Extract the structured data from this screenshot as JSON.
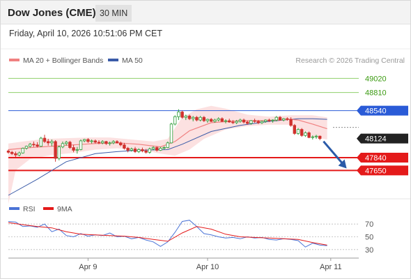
{
  "header": {
    "title": "Dow Jones (CME)",
    "timeframe": "30 MIN"
  },
  "subtitle": "Friday, April 10, 2026 10:51:06 PM CET",
  "colors": {
    "candle_up": "#2e9d3a",
    "candle_down": "#d0312d",
    "ma20": "#f08080",
    "bollinger_band": "#fcdcdc",
    "ma50": "#3a5ba8",
    "resistance_line": "#8fcf6b",
    "resistance_text": "#3a9a10",
    "pivot_line": "#2a5bd7",
    "pivot_label_bg": "#2a5bd7",
    "support_line": "#e41a1a",
    "support_label_bg": "#e41a1a",
    "last_price_bg": "#222222",
    "arrow": "#2a5aa8",
    "rsi_line": "#4a73d6",
    "rsi_9ma": "#e41a1a"
  },
  "chart_data": {
    "type": "candlestick",
    "legend": [
      {
        "name": "MA 20 + Bollinger Bands",
        "color": "#f08080"
      },
      {
        "name": "MA 50",
        "color": "#3a5ba8"
      }
    ],
    "watermark": "Research © 2026 Trading Central",
    "ylim": [
      47280,
      49200
    ],
    "levels": [
      {
        "value": 49020,
        "label": "49020",
        "kind": "resistance"
      },
      {
        "value": 48810,
        "label": "48810",
        "kind": "resistance"
      },
      {
        "value": 48540,
        "label": "48540",
        "kind": "pivot"
      },
      {
        "value": 47840,
        "label": "47840",
        "kind": "support"
      },
      {
        "value": 47650,
        "label": "47650",
        "kind": "support"
      }
    ],
    "last_price": 48124,
    "last_price_label": "48124",
    "x_ticks": [
      {
        "label": "Apr 9",
        "index": 22
      },
      {
        "label": "Apr 10",
        "index": 55
      },
      {
        "label": "Apr 11",
        "index": 89
      }
    ],
    "candles": [
      [
        47940,
        47960,
        47900,
        47920
      ],
      [
        47920,
        47940,
        47880,
        47900
      ],
      [
        47900,
        47930,
        47850,
        47880
      ],
      [
        47880,
        47930,
        47860,
        47910
      ],
      [
        47910,
        47990,
        47900,
        47980
      ],
      [
        47980,
        48020,
        47960,
        48010
      ],
      [
        48010,
        48060,
        47990,
        48040
      ],
      [
        48040,
        48080,
        48000,
        48030
      ],
      [
        48030,
        48070,
        47990,
        48010
      ],
      [
        48010,
        48150,
        48000,
        48130
      ],
      [
        48130,
        48180,
        48060,
        48080
      ],
      [
        48080,
        48120,
        48020,
        48060
      ],
      [
        48060,
        48110,
        48010,
        48080
      ],
      [
        48080,
        48100,
        47780,
        47830
      ],
      [
        47830,
        48020,
        47800,
        48000
      ],
      [
        48000,
        48080,
        47980,
        48050
      ],
      [
        48050,
        48090,
        48020,
        48070
      ],
      [
        48070,
        48090,
        47970,
        47990
      ],
      [
        47990,
        48030,
        47920,
        47950
      ],
      [
        47950,
        48000,
        47900,
        47960
      ],
      [
        47960,
        48110,
        47950,
        48090
      ],
      [
        48090,
        48120,
        48070,
        48110
      ],
      [
        48110,
        48130,
        48060,
        48080
      ],
      [
        48080,
        48110,
        48050,
        48090
      ],
      [
        48090,
        48110,
        48050,
        48070
      ],
      [
        48070,
        48100,
        48040,
        48060
      ],
      [
        48060,
        48100,
        48040,
        48080
      ],
      [
        48080,
        48090,
        48030,
        48050
      ],
      [
        48050,
        48080,
        48020,
        48060
      ],
      [
        48060,
        48100,
        48040,
        48080
      ],
      [
        48080,
        48100,
        48050,
        48060
      ],
      [
        48060,
        48080,
        48010,
        48030
      ],
      [
        48030,
        48060,
        47960,
        47980
      ],
      [
        47980,
        48000,
        47920,
        47950
      ],
      [
        47950,
        47990,
        47930,
        47970
      ],
      [
        47970,
        48000,
        47910,
        47930
      ],
      [
        47930,
        47980,
        47910,
        47960
      ],
      [
        47960,
        47990,
        47920,
        47940
      ],
      [
        47940,
        47970,
        47900,
        47920
      ],
      [
        47920,
        47990,
        47900,
        47970
      ],
      [
        47970,
        48010,
        47950,
        47990
      ],
      [
        47990,
        48010,
        47930,
        47950
      ],
      [
        47950,
        48000,
        47940,
        47980
      ],
      [
        47980,
        48010,
        47960,
        47990
      ],
      [
        47990,
        48080,
        47980,
        48060
      ],
      [
        48060,
        48360,
        48050,
        48340
      ],
      [
        48340,
        48470,
        48320,
        48450
      ],
      [
        48450,
        48560,
        48400,
        48520
      ],
      [
        48520,
        48540,
        48420,
        48440
      ],
      [
        48440,
        48480,
        48400,
        48460
      ],
      [
        48460,
        48480,
        48400,
        48420
      ],
      [
        48420,
        48460,
        48380,
        48440
      ],
      [
        48440,
        48460,
        48380,
        48400
      ],
      [
        48400,
        48460,
        48380,
        48440
      ],
      [
        48440,
        48460,
        48370,
        48390
      ],
      [
        48390,
        48420,
        48360,
        48410
      ],
      [
        48410,
        48430,
        48370,
        48380
      ],
      [
        48380,
        48420,
        48360,
        48400
      ],
      [
        48400,
        48440,
        48380,
        48420
      ],
      [
        48420,
        48440,
        48370,
        48380
      ],
      [
        48380,
        48410,
        48350,
        48390
      ],
      [
        48390,
        48420,
        48360,
        48370
      ],
      [
        48370,
        48400,
        48340,
        48360
      ],
      [
        48360,
        48400,
        48340,
        48380
      ],
      [
        48380,
        48420,
        48360,
        48400
      ],
      [
        48400,
        48420,
        48350,
        48370
      ],
      [
        48370,
        48390,
        48330,
        48350
      ],
      [
        48350,
        48400,
        48330,
        48390
      ],
      [
        48390,
        48420,
        48360,
        48380
      ],
      [
        48380,
        48400,
        48340,
        48360
      ],
      [
        48360,
        48390,
        48340,
        48380
      ],
      [
        48380,
        48410,
        48360,
        48400
      ],
      [
        48400,
        48420,
        48370,
        48390
      ],
      [
        48390,
        48410,
        48360,
        48400
      ],
      [
        48400,
        48460,
        48380,
        48440
      ],
      [
        48440,
        48460,
        48390,
        48400
      ],
      [
        48400,
        48430,
        48380,
        48420
      ],
      [
        48420,
        48440,
        48390,
        48410
      ],
      [
        48410,
        48440,
        48300,
        48320
      ],
      [
        48320,
        48340,
        48180,
        48200
      ],
      [
        48200,
        48280,
        48180,
        48260
      ],
      [
        48260,
        48280,
        48150,
        48170
      ],
      [
        48170,
        48230,
        48150,
        48210
      ],
      [
        48210,
        48230,
        48130,
        48140
      ],
      [
        48140,
        48170,
        48110,
        48150
      ],
      [
        48150,
        48180,
        48120,
        48160
      ],
      [
        48160,
        48170,
        48100,
        48124
      ]
    ],
    "ma20": [
      [
        0,
        47960
      ],
      [
        6,
        47990
      ],
      [
        12,
        48010
      ],
      [
        18,
        48030
      ],
      [
        24,
        48050
      ],
      [
        30,
        48060
      ],
      [
        36,
        48040
      ],
      [
        42,
        48000
      ],
      [
        46,
        48080
      ],
      [
        50,
        48240
      ],
      [
        56,
        48360
      ],
      [
        64,
        48390
      ],
      [
        72,
        48390
      ],
      [
        78,
        48410
      ],
      [
        80,
        48400
      ],
      [
        84,
        48340
      ],
      [
        88,
        48270
      ]
    ],
    "bb_upper": [
      [
        0,
        48050
      ],
      [
        4,
        48080
      ],
      [
        10,
        48120
      ],
      [
        16,
        48130
      ],
      [
        22,
        48140
      ],
      [
        28,
        48140
      ],
      [
        34,
        48110
      ],
      [
        40,
        48080
      ],
      [
        44,
        48120
      ],
      [
        48,
        48440
      ],
      [
        52,
        48560
      ],
      [
        56,
        48610
      ],
      [
        60,
        48570
      ],
      [
        66,
        48480
      ],
      [
        72,
        48450
      ],
      [
        78,
        48470
      ],
      [
        84,
        48470
      ],
      [
        88,
        48440
      ]
    ],
    "bb_lower": [
      [
        0,
        47150
      ],
      [
        2,
        47650
      ],
      [
        6,
        47820
      ],
      [
        12,
        47880
      ],
      [
        18,
        47910
      ],
      [
        24,
        47960
      ],
      [
        30,
        47980
      ],
      [
        36,
        47960
      ],
      [
        42,
        47900
      ],
      [
        46,
        47870
      ],
      [
        50,
        47960
      ],
      [
        54,
        48120
      ],
      [
        60,
        48260
      ],
      [
        66,
        48310
      ],
      [
        72,
        48330
      ],
      [
        78,
        48330
      ],
      [
        84,
        48150
      ],
      [
        88,
        48110
      ]
    ],
    "ma50": [
      [
        0,
        47280
      ],
      [
        8,
        47520
      ],
      [
        16,
        47780
      ],
      [
        24,
        47900
      ],
      [
        30,
        47930
      ],
      [
        36,
        47950
      ],
      [
        44,
        47960
      ],
      [
        48,
        48040
      ],
      [
        56,
        48230
      ],
      [
        64,
        48320
      ],
      [
        72,
        48380
      ],
      [
        80,
        48420
      ],
      [
        84,
        48420
      ],
      [
        88,
        48410
      ]
    ],
    "forecast_arrow": {
      "from": [
        87,
        48124
      ],
      "to": [
        93,
        47700
      ]
    },
    "rsi": {
      "legend": [
        {
          "name": "RSI",
          "color": "#4a73d6"
        },
        {
          "name": "9MA",
          "color": "#e41a1a"
        }
      ],
      "ylim": [
        20,
        80
      ],
      "ticks": [
        70,
        50,
        30
      ],
      "rsi": [
        [
          0,
          74
        ],
        [
          2,
          73
        ],
        [
          4,
          66
        ],
        [
          6,
          67
        ],
        [
          8,
          65
        ],
        [
          10,
          70
        ],
        [
          12,
          58
        ],
        [
          14,
          62
        ],
        [
          16,
          52
        ],
        [
          18,
          50
        ],
        [
          20,
          55
        ],
        [
          22,
          51
        ],
        [
          24,
          53
        ],
        [
          26,
          52
        ],
        [
          28,
          56
        ],
        [
          30,
          50
        ],
        [
          32,
          51
        ],
        [
          34,
          47
        ],
        [
          36,
          49
        ],
        [
          38,
          45
        ],
        [
          40,
          42
        ],
        [
          42,
          35
        ],
        [
          44,
          42
        ],
        [
          46,
          57
        ],
        [
          48,
          74
        ],
        [
          50,
          76
        ],
        [
          52,
          66
        ],
        [
          54,
          55
        ],
        [
          56,
          53
        ],
        [
          58,
          50
        ],
        [
          60,
          48
        ],
        [
          62,
          49
        ],
        [
          64,
          47
        ],
        [
          66,
          50
        ],
        [
          68,
          48
        ],
        [
          70,
          49
        ],
        [
          72,
          46
        ],
        [
          74,
          45
        ],
        [
          76,
          47
        ],
        [
          78,
          46
        ],
        [
          80,
          44
        ],
        [
          82,
          34
        ],
        [
          84,
          40
        ],
        [
          86,
          37
        ],
        [
          88,
          36
        ]
      ],
      "ma9": [
        [
          0,
          72
        ],
        [
          4,
          69
        ],
        [
          8,
          66
        ],
        [
          12,
          64
        ],
        [
          16,
          58
        ],
        [
          20,
          54
        ],
        [
          24,
          53
        ],
        [
          28,
          52
        ],
        [
          32,
          51
        ],
        [
          36,
          49
        ],
        [
          40,
          46
        ],
        [
          44,
          43
        ],
        [
          48,
          56
        ],
        [
          52,
          66
        ],
        [
          56,
          62
        ],
        [
          60,
          54
        ],
        [
          64,
          50
        ],
        [
          68,
          49
        ],
        [
          72,
          48
        ],
        [
          76,
          47
        ],
        [
          80,
          46
        ],
        [
          84,
          41
        ],
        [
          88,
          37
        ]
      ]
    }
  }
}
